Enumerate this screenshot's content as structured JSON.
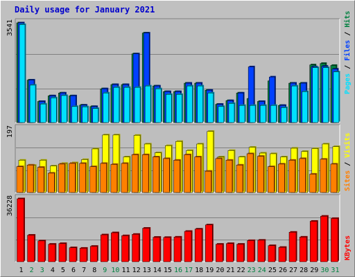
{
  "title": "Daily usage for January 2021",
  "colors": {
    "background": "#c0c0c0",
    "panel": "#bebebe",
    "title": "#0000cc",
    "hits": "#008040",
    "files": "#0040ff",
    "pages": "#00e0ff",
    "visits": "#ffff00",
    "sites": "#ff8000",
    "kbytes": "#ff0000",
    "weekday_label": "#000000",
    "weekend_label": "#008040"
  },
  "chart_data": [
    {
      "type": "bar",
      "panel": "top",
      "scale_max_label": "3541",
      "ylim": [
        0,
        3541
      ],
      "categories": [
        "1",
        "2",
        "3",
        "4",
        "5",
        "6",
        "7",
        "8",
        "9",
        "10",
        "11",
        "12",
        "13",
        "14",
        "15",
        "16",
        "17",
        "18",
        "19",
        "20",
        "21",
        "22",
        "23",
        "24",
        "25",
        "26",
        "27",
        "28",
        "29",
        "30",
        "31"
      ],
      "weekend_days": [
        "2",
        "3",
        "9",
        "10",
        "16",
        "17",
        "23",
        "24",
        "30",
        "31"
      ],
      "series": [
        {
          "name": "Hits",
          "values": [
            3541,
            1510,
            750,
            950,
            1050,
            950,
            620,
            570,
            1200,
            1350,
            1350,
            2440,
            3180,
            1300,
            1100,
            1100,
            1400,
            1400,
            1150,
            650,
            780,
            1050,
            850,
            750,
            1480,
            610,
            1400,
            1400,
            2050,
            2100,
            2030
          ]
        },
        {
          "name": "Files",
          "values": [
            3541,
            1510,
            750,
            950,
            1050,
            950,
            620,
            570,
            1200,
            1350,
            1350,
            2440,
            3180,
            1300,
            1100,
            1100,
            1400,
            1400,
            1150,
            650,
            780,
            1050,
            1980,
            750,
            1620,
            610,
            1400,
            1400,
            1980,
            2000,
            1900
          ]
        },
        {
          "name": "Pages",
          "values": [
            3480,
            1330,
            660,
            880,
            960,
            570,
            560,
            500,
            1050,
            1250,
            1250,
            1250,
            1300,
            1200,
            1000,
            1000,
            1300,
            1300,
            1050,
            570,
            680,
            610,
            610,
            610,
            610,
            530,
            1300,
            1100,
            1950,
            1950,
            1800
          ]
        }
      ],
      "legend": [
        "Pages",
        "Files",
        "Hits"
      ]
    },
    {
      "type": "bar",
      "panel": "middle",
      "scale_max_label": "197",
      "ylim": [
        0,
        197
      ],
      "categories": [
        "1",
        "2",
        "3",
        "4",
        "5",
        "6",
        "7",
        "8",
        "9",
        "10",
        "11",
        "12",
        "13",
        "14",
        "15",
        "16",
        "17",
        "18",
        "19",
        "20",
        "21",
        "22",
        "23",
        "24",
        "25",
        "26",
        "27",
        "28",
        "29",
        "30",
        "31"
      ],
      "series": [
        {
          "name": "Visits",
          "values": [
            100,
            84,
            100,
            82,
            90,
            92,
            102,
            135,
            178,
            178,
            110,
            177,
            150,
            123,
            145,
            158,
            130,
            150,
            189,
            110,
            130,
            110,
            140,
            122,
            120,
            110,
            137,
            127,
            136,
            150,
            142
          ]
        },
        {
          "name": "Sites",
          "values": [
            80,
            85,
            78,
            60,
            88,
            90,
            90,
            80,
            90,
            87,
            90,
            117,
            117,
            110,
            105,
            100,
            117,
            110,
            66,
            105,
            100,
            85,
            120,
            112,
            80,
            88,
            100,
            105,
            57,
            103,
            88
          ]
        }
      ],
      "legend": [
        "Sites",
        "Visits"
      ]
    },
    {
      "type": "bar",
      "panel": "bottom",
      "scale_max_label": "36228",
      "ylim": [
        0,
        36228
      ],
      "categories": [
        "1",
        "2",
        "3",
        "4",
        "5",
        "6",
        "7",
        "8",
        "9",
        "10",
        "11",
        "12",
        "13",
        "14",
        "15",
        "16",
        "17",
        "18",
        "19",
        "20",
        "21",
        "22",
        "23",
        "24",
        "25",
        "26",
        "27",
        "28",
        "29",
        "30",
        "31"
      ],
      "series": [
        {
          "name": "KBytes",
          "values": [
            36228,
            15300,
            12000,
            10100,
            10500,
            8100,
            7800,
            8900,
            15500,
            16700,
            15000,
            15800,
            19300,
            14100,
            14000,
            14200,
            17500,
            18800,
            21200,
            10100,
            10500,
            10100,
            12200,
            12400,
            9300,
            8300,
            17000,
            14200,
            23300,
            26200,
            24900
          ]
        }
      ],
      "legend": [
        "KBytes"
      ]
    }
  ]
}
